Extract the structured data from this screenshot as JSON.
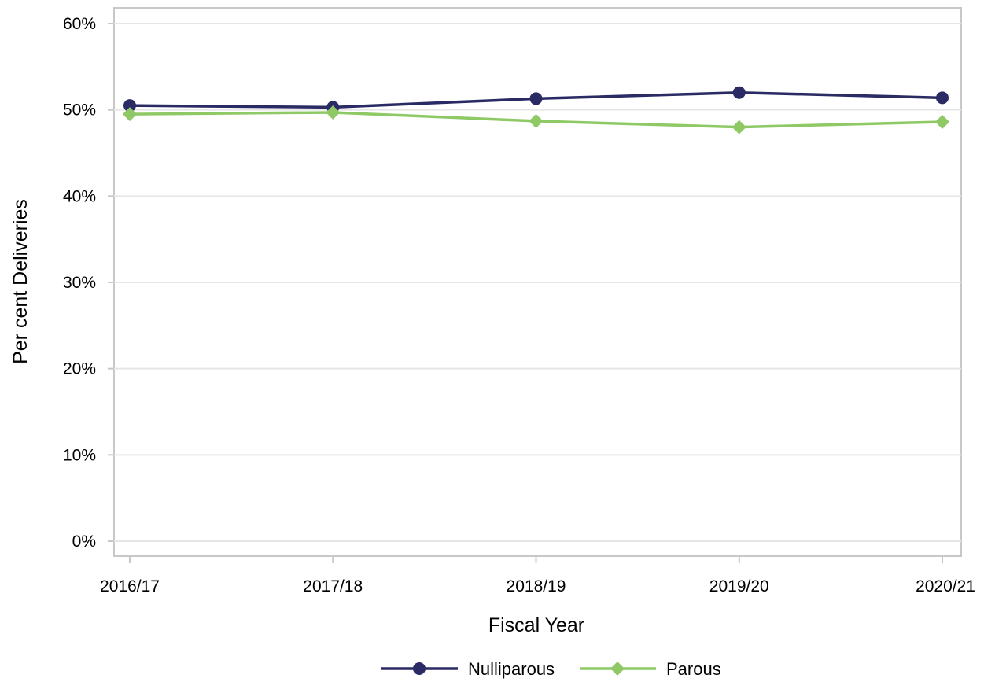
{
  "chart_data": {
    "type": "line",
    "title": "",
    "xlabel": "Fiscal Year",
    "ylabel": "Per cent Deliveries",
    "categories": [
      "2016/17",
      "2017/18",
      "2018/19",
      "2019/20",
      "2020/21"
    ],
    "ylim": [
      0,
      60
    ],
    "yticks": [
      0,
      10,
      20,
      30,
      40,
      50,
      60
    ],
    "ytick_labels": [
      "0%",
      "10%",
      "20%",
      "30%",
      "40%",
      "50%",
      "60%"
    ],
    "grid": true,
    "legend_position": "bottom",
    "series": [
      {
        "name": "Nulliparous",
        "values": [
          50.5,
          50.3,
          51.3,
          52.0,
          51.4
        ],
        "color": "#2a2a64",
        "marker": "circle"
      },
      {
        "name": "Parous",
        "values": [
          49.5,
          49.7,
          48.7,
          48.0,
          48.6
        ],
        "color": "#8ec965",
        "marker": "diamond"
      }
    ]
  }
}
